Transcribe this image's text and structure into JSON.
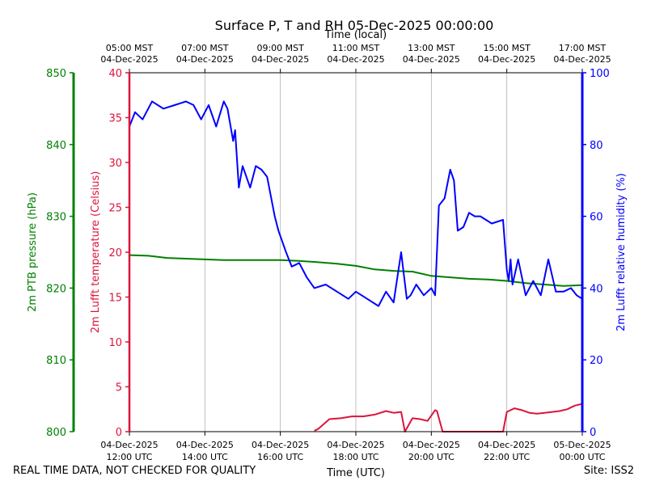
{
  "chart_data": {
    "type": "line",
    "title": "Surface P, T and RH 05-Dec-2025 00:00:00",
    "top_axis_label": "Time (local)",
    "xlabel": "Time (UTC)",
    "footer_left": "REAL TIME DATA, NOT CHECKED FOR QUALITY",
    "footer_right": "Site: ISS2",
    "x_hours_range": [
      12,
      24
    ],
    "x_ticks_utc": [
      {
        "hour": 12,
        "date": "04-Dec-2025",
        "time": "12:00 UTC"
      },
      {
        "hour": 14,
        "date": "04-Dec-2025",
        "time": "14:00 UTC"
      },
      {
        "hour": 16,
        "date": "04-Dec-2025",
        "time": "16:00 UTC"
      },
      {
        "hour": 18,
        "date": "04-Dec-2025",
        "time": "18:00 UTC"
      },
      {
        "hour": 20,
        "date": "04-Dec-2025",
        "time": "20:00 UTC"
      },
      {
        "hour": 22,
        "date": "04-Dec-2025",
        "time": "22:00 UTC"
      },
      {
        "hour": 24,
        "date": "05-Dec-2025",
        "time": "00:00 UTC"
      }
    ],
    "x_ticks_local": [
      {
        "hour": 12,
        "time": "05:00 MST",
        "date": "04-Dec-2025"
      },
      {
        "hour": 14,
        "time": "07:00 MST",
        "date": "04-Dec-2025"
      },
      {
        "hour": 16,
        "time": "09:00 MST",
        "date": "04-Dec-2025"
      },
      {
        "hour": 18,
        "time": "11:00 MST",
        "date": "04-Dec-2025"
      },
      {
        "hour": 20,
        "time": "13:00 MST",
        "date": "04-Dec-2025"
      },
      {
        "hour": 22,
        "time": "15:00 MST",
        "date": "04-Dec-2025"
      },
      {
        "hour": 24,
        "time": "17:00 MST",
        "date": "04-Dec-2025"
      }
    ],
    "axes": {
      "pressure": {
        "label": "2m PTB pressure (hPa)",
        "range": [
          800,
          850
        ],
        "ticks": [
          800,
          810,
          820,
          830,
          840,
          850
        ],
        "color": "#008000"
      },
      "temperature": {
        "label": "2m Lufft temperature (Celsius)",
        "range": [
          0,
          40
        ],
        "ticks": [
          0,
          5,
          10,
          15,
          20,
          25,
          30,
          35,
          40
        ],
        "color": "#dc143c"
      },
      "humidity": {
        "label": "2m Lufft relative humidity (%)",
        "range": [
          0,
          100
        ],
        "ticks": [
          0,
          20,
          40,
          60,
          80,
          100
        ],
        "color": "#0000ff"
      }
    },
    "series": [
      {
        "name": "2m PTB pressure (hPa)",
        "axis": "pressure",
        "color": "#008000",
        "x": [
          12,
          12.5,
          13,
          13.5,
          14,
          14.5,
          15,
          15.5,
          16,
          16.5,
          17,
          17.5,
          18,
          18.5,
          19,
          19.5,
          20,
          20.5,
          21,
          21.5,
          22,
          22.5,
          23,
          23.5,
          24
        ],
        "values": [
          824.6,
          824.5,
          824.2,
          824.1,
          824.0,
          823.9,
          823.9,
          823.9,
          823.9,
          823.8,
          823.6,
          823.4,
          823.1,
          822.6,
          822.4,
          822.3,
          821.7,
          821.5,
          821.3,
          821.2,
          821.0,
          820.7,
          820.5,
          820.3,
          820.4
        ]
      },
      {
        "name": "2m Lufft temperature (Celsius)",
        "axis": "temperature",
        "color": "#dc143c",
        "x": [
          16.9,
          17.0,
          17.3,
          17.6,
          17.9,
          18.2,
          18.5,
          18.8,
          19.0,
          19.2,
          19.3,
          19.5,
          19.7,
          19.9,
          20.1,
          20.15,
          20.3,
          21.9,
          22.0,
          22.2,
          22.4,
          22.6,
          22.8,
          23.0,
          23.2,
          23.4,
          23.6,
          23.8,
          24.0
        ],
        "values": [
          0.1,
          0.3,
          1.4,
          1.5,
          1.7,
          1.7,
          1.9,
          2.3,
          2.1,
          2.2,
          0.0,
          1.5,
          1.4,
          1.2,
          2.4,
          2.3,
          0.0,
          0.0,
          2.2,
          2.6,
          2.4,
          2.1,
          2.0,
          2.1,
          2.2,
          2.3,
          2.5,
          2.9,
          3.1
        ]
      },
      {
        "name": "2m Lufft relative humidity (%)",
        "axis": "humidity",
        "color": "#0000ff",
        "x": [
          12,
          12.15,
          12.35,
          12.6,
          12.9,
          13.2,
          13.5,
          13.7,
          13.9,
          14.1,
          14.3,
          14.5,
          14.6,
          14.75,
          14.8,
          14.9,
          15.0,
          15.2,
          15.35,
          15.5,
          15.65,
          15.85,
          15.95,
          16.05,
          16.15,
          16.3,
          16.5,
          16.7,
          16.9,
          17.2,
          17.5,
          17.8,
          18.0,
          18.3,
          18.6,
          18.8,
          19.0,
          19.2,
          19.35,
          19.45,
          19.6,
          19.8,
          20.0,
          20.1,
          20.2,
          20.35,
          20.5,
          20.6,
          20.7,
          20.85,
          21.0,
          21.15,
          21.3,
          21.6,
          21.9,
          22.0,
          22.05,
          22.1,
          22.15,
          22.3,
          22.5,
          22.7,
          22.9,
          23.1,
          23.3,
          23.5,
          23.7,
          23.85,
          24.0
        ],
        "values": [
          85,
          89,
          87,
          92,
          90,
          91,
          92,
          91,
          87,
          91,
          85,
          92,
          90,
          81,
          84,
          68,
          74,
          68,
          74,
          73,
          71,
          60,
          56,
          53,
          50,
          46,
          47,
          43,
          40,
          41,
          39,
          37,
          39,
          37,
          35,
          39,
          36,
          50,
          37,
          38,
          41,
          38,
          40,
          38,
          63,
          65,
          73,
          70,
          56,
          57,
          61,
          60,
          60,
          58,
          59,
          45,
          42,
          48,
          41,
          48,
          38,
          42,
          38,
          48,
          39,
          39,
          40,
          38,
          37
        ]
      }
    ]
  }
}
